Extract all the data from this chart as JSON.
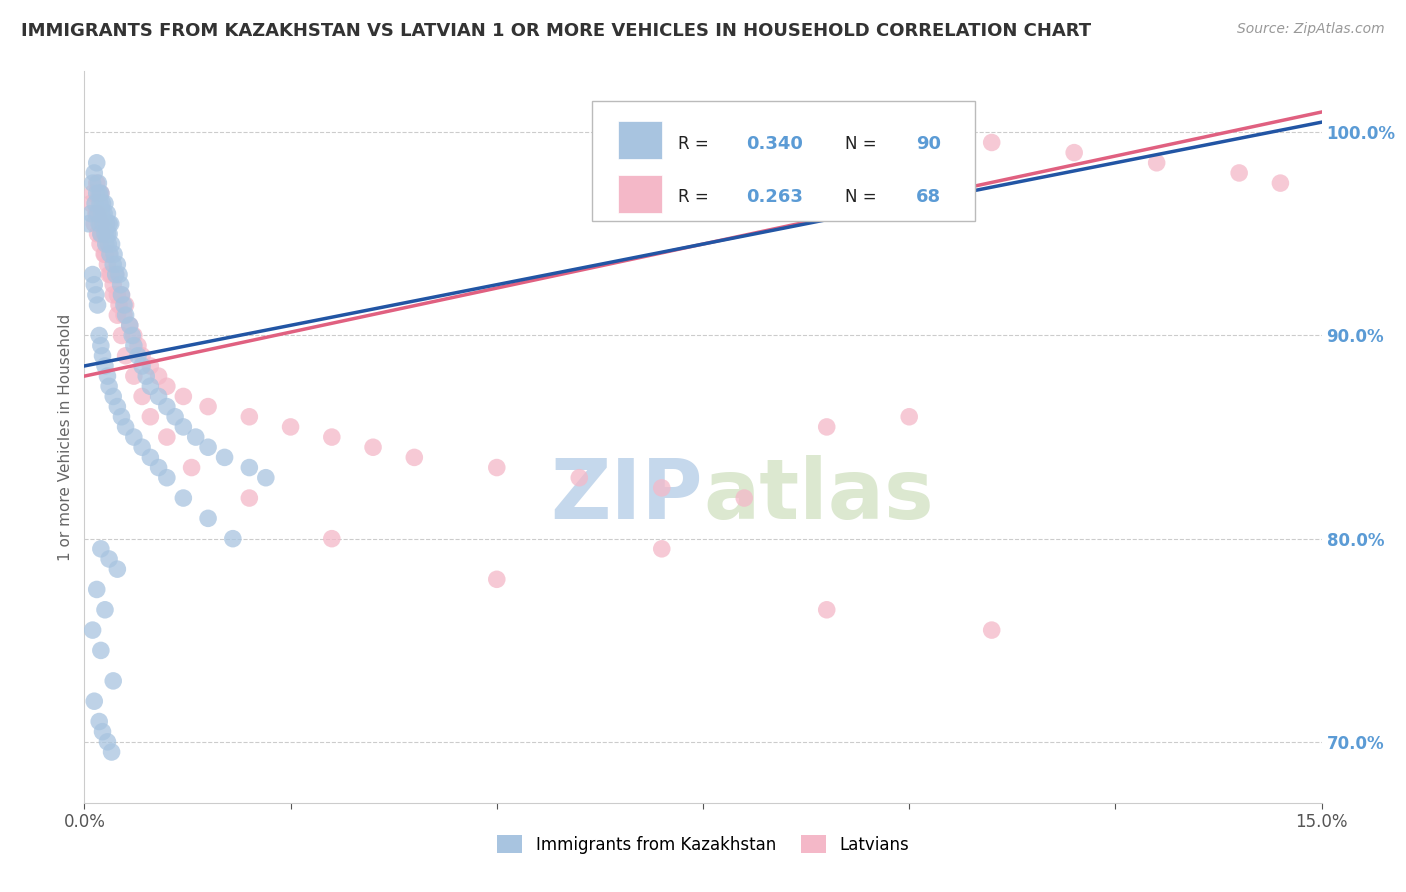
{
  "title": "IMMIGRANTS FROM KAZAKHSTAN VS LATVIAN 1 OR MORE VEHICLES IN HOUSEHOLD CORRELATION CHART",
  "source_text": "Source: ZipAtlas.com",
  "ylabel": "1 or more Vehicles in Household",
  "xlim": [
    0.0,
    15.0
  ],
  "ylim": [
    67.0,
    103.0
  ],
  "yticks": [
    70.0,
    80.0,
    90.0,
    100.0
  ],
  "yticklabels": [
    "70.0%",
    "80.0%",
    "90.0%",
    "100.0%"
  ],
  "R_kazakhstan": 0.34,
  "N_kazakhstan": 90,
  "R_latvians": 0.263,
  "N_latvians": 68,
  "blue_color": "#a8c4e0",
  "pink_color": "#f4b8c8",
  "blue_line_color": "#2255a4",
  "pink_line_color": "#e06080",
  "title_color": "#333333",
  "label_color": "#666666",
  "tick_label_color_right": "#5b9bd5",
  "watermark_color": "#dce6f0",
  "background_color": "#ffffff",
  "grid_color": "#cccccc",
  "kaz_x": [
    0.05,
    0.08,
    0.1,
    0.12,
    0.13,
    0.15,
    0.15,
    0.16,
    0.17,
    0.18,
    0.18,
    0.19,
    0.2,
    0.2,
    0.21,
    0.22,
    0.23,
    0.24,
    0.25,
    0.25,
    0.26,
    0.27,
    0.28,
    0.28,
    0.29,
    0.3,
    0.3,
    0.31,
    0.32,
    0.33,
    0.35,
    0.36,
    0.38,
    0.4,
    0.42,
    0.44,
    0.45,
    0.48,
    0.5,
    0.55,
    0.58,
    0.6,
    0.65,
    0.7,
    0.75,
    0.8,
    0.9,
    1.0,
    1.1,
    1.2,
    1.35,
    1.5,
    1.7,
    2.0,
    2.2,
    0.1,
    0.12,
    0.14,
    0.16,
    0.18,
    0.2,
    0.22,
    0.25,
    0.28,
    0.3,
    0.35,
    0.4,
    0.45,
    0.5,
    0.6,
    0.7,
    0.8,
    0.9,
    1.0,
    1.2,
    1.5,
    1.8,
    0.2,
    0.3,
    0.4,
    0.15,
    0.25,
    0.1,
    0.2,
    0.35,
    0.12,
    0.18,
    0.22,
    0.28,
    0.33
  ],
  "kaz_y": [
    95.5,
    96.0,
    97.5,
    98.0,
    96.5,
    97.0,
    98.5,
    96.0,
    97.5,
    95.5,
    97.0,
    96.5,
    95.0,
    97.0,
    96.0,
    96.5,
    95.5,
    96.0,
    95.0,
    96.5,
    94.5,
    95.5,
    95.0,
    96.0,
    94.5,
    95.0,
    95.5,
    94.0,
    95.5,
    94.5,
    93.5,
    94.0,
    93.0,
    93.5,
    93.0,
    92.5,
    92.0,
    91.5,
    91.0,
    90.5,
    90.0,
    89.5,
    89.0,
    88.5,
    88.0,
    87.5,
    87.0,
    86.5,
    86.0,
    85.5,
    85.0,
    84.5,
    84.0,
    83.5,
    83.0,
    93.0,
    92.5,
    92.0,
    91.5,
    90.0,
    89.5,
    89.0,
    88.5,
    88.0,
    87.5,
    87.0,
    86.5,
    86.0,
    85.5,
    85.0,
    84.5,
    84.0,
    83.5,
    83.0,
    82.0,
    81.0,
    80.0,
    79.5,
    79.0,
    78.5,
    77.5,
    76.5,
    75.5,
    74.5,
    73.0,
    72.0,
    71.0,
    70.5,
    70.0,
    69.5
  ],
  "lat_x": [
    0.08,
    0.1,
    0.12,
    0.14,
    0.15,
    0.16,
    0.18,
    0.19,
    0.2,
    0.2,
    0.22,
    0.24,
    0.25,
    0.26,
    0.28,
    0.3,
    0.32,
    0.35,
    0.38,
    0.4,
    0.42,
    0.45,
    0.48,
    0.5,
    0.55,
    0.6,
    0.65,
    0.7,
    0.8,
    0.9,
    1.0,
    1.2,
    1.5,
    2.0,
    2.5,
    3.0,
    3.5,
    4.0,
    5.0,
    6.0,
    7.0,
    8.0,
    9.0,
    10.0,
    11.0,
    12.0,
    13.0,
    14.0,
    14.5,
    0.15,
    0.2,
    0.25,
    0.3,
    0.35,
    0.4,
    0.45,
    0.5,
    0.6,
    0.7,
    0.8,
    1.0,
    1.3,
    2.0,
    3.0,
    5.0,
    7.0,
    9.0,
    11.0
  ],
  "lat_y": [
    96.5,
    97.0,
    95.5,
    96.0,
    97.5,
    95.0,
    96.0,
    94.5,
    95.5,
    97.0,
    95.0,
    94.0,
    95.5,
    94.5,
    93.5,
    94.0,
    93.0,
    92.5,
    93.0,
    92.0,
    91.5,
    92.0,
    91.0,
    91.5,
    90.5,
    90.0,
    89.5,
    89.0,
    88.5,
    88.0,
    87.5,
    87.0,
    86.5,
    86.0,
    85.5,
    85.0,
    84.5,
    84.0,
    83.5,
    83.0,
    82.5,
    82.0,
    85.5,
    86.0,
    99.5,
    99.0,
    98.5,
    98.0,
    97.5,
    96.0,
    95.0,
    94.0,
    93.0,
    92.0,
    91.0,
    90.0,
    89.0,
    88.0,
    87.0,
    86.0,
    85.0,
    83.5,
    82.0,
    80.0,
    78.0,
    79.5,
    76.5,
    75.5
  ],
  "blue_line_x0": 0.0,
  "blue_line_y0": 88.5,
  "blue_line_x1": 15.0,
  "blue_line_y1": 100.5,
  "pink_line_x0": 0.0,
  "pink_line_y0": 88.0,
  "pink_line_x1": 15.0,
  "pink_line_y1": 101.0
}
